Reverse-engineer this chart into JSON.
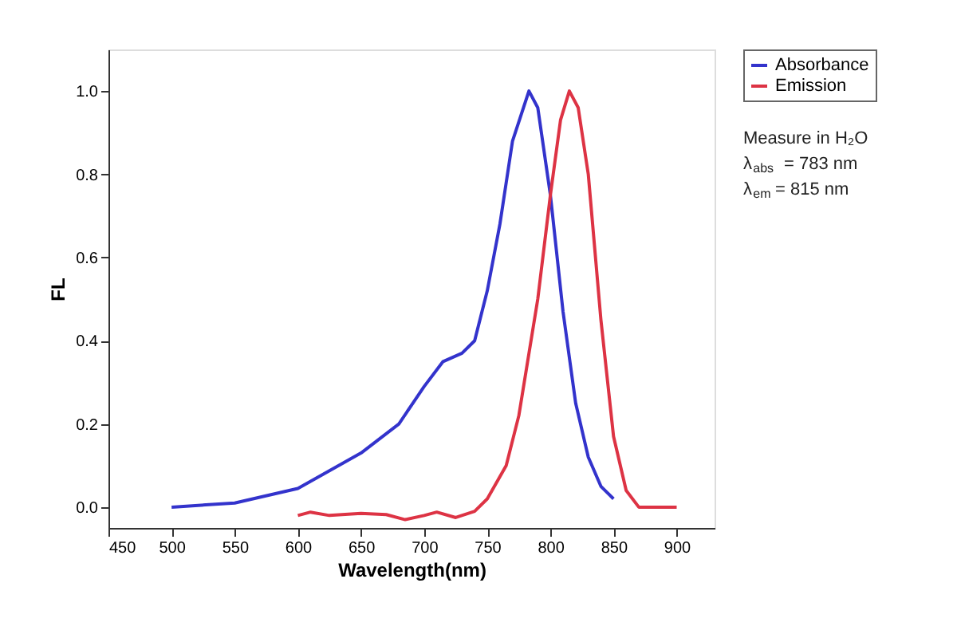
{
  "chart_data": {
    "type": "line",
    "xlabel": "Wavelength(nm)",
    "ylabel": "FL",
    "xlim": [
      450,
      930
    ],
    "xticks": [
      450,
      500,
      550,
      600,
      650,
      700,
      750,
      800,
      850,
      900
    ],
    "ylim": [
      -0.05,
      1.1
    ],
    "yticks": [
      {
        "value": 0,
        "label": "0.0"
      },
      0.2,
      0.4,
      0.6,
      0.8,
      {
        "value": 1,
        "label": "1.0"
      }
    ],
    "grid": false,
    "legend": "top right",
    "marker": "none",
    "line_style": "solid",
    "annotations": [
      "Measure in H₂O",
      "λ$_{abs}$ = 783 nm",
      "λ$_{em}$ = 815 nm"
    ],
    "series": [
      {
        "name": "Absorbance",
        "color": "#3333cc",
        "x": [
          500,
          550,
          600,
          650,
          680,
          700,
          715,
          730,
          740,
          750,
          760,
          770,
          783,
          790,
          800,
          810,
          820,
          830,
          840,
          850
        ],
        "values": [
          0.0,
          0.01,
          0.045,
          0.13,
          0.2,
          0.29,
          0.35,
          0.37,
          0.4,
          0.52,
          0.68,
          0.88,
          1.0,
          0.96,
          0.75,
          0.47,
          0.25,
          0.12,
          0.05,
          0.02
        ]
      },
      {
        "name": "Emission",
        "color": "#dd3344",
        "x": [
          600,
          610,
          625,
          650,
          670,
          685,
          700,
          710,
          725,
          740,
          750,
          765,
          775,
          790,
          800,
          808,
          815,
          822,
          830,
          840,
          850,
          860,
          870,
          880,
          900
        ],
        "values": [
          -0.02,
          -0.012,
          -0.02,
          -0.015,
          -0.018,
          -0.03,
          -0.02,
          -0.012,
          -0.025,
          -0.01,
          0.02,
          0.1,
          0.22,
          0.5,
          0.75,
          0.93,
          1.0,
          0.96,
          0.8,
          0.45,
          0.17,
          0.04,
          0.0,
          0.0,
          0.0
        ]
      }
    ]
  }
}
